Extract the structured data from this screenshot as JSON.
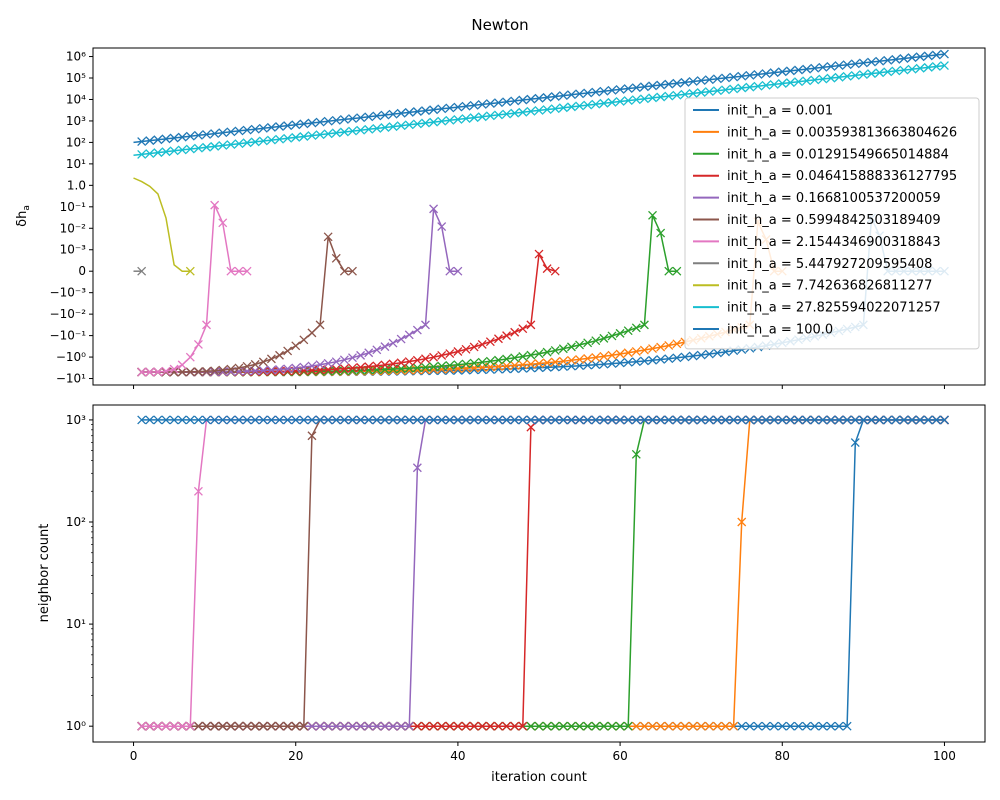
{
  "figure_title": "Newton",
  "colors": {
    "tab": [
      "#1f77b4",
      "#ff7f0e",
      "#2ca02c",
      "#d62728",
      "#9467bd",
      "#8c564b",
      "#e377c2",
      "#7f7f7f",
      "#bcbd22",
      "#17becf"
    ]
  },
  "chart_data": [
    {
      "type": "line",
      "panel": "top",
      "title": "Newton",
      "xlabel": "",
      "ylabel": "δh_a",
      "ylabel_main": "δh",
      "ylabel_sub": "a",
      "yscale": "symlog",
      "xlim": [
        -5,
        105
      ],
      "xticks": [
        0,
        20,
        40,
        60,
        80,
        100
      ],
      "ytick_labels": [
        "−10¹",
        "−10⁰",
        "−10⁻¹",
        "−10⁻²",
        "−10⁻³",
        "0",
        "10⁻³",
        "10⁻²",
        "10⁻¹",
        "1.0",
        "10¹",
        "10²",
        "10³",
        "10⁴",
        "10⁵",
        "10⁶"
      ],
      "legend": {
        "position": "right",
        "entries": [
          "init_h_a = 0.001",
          "init_h_a = 0.003593813663804626",
          "init_h_a = 0.01291549665014884",
          "init_h_a = 0.046415888336127795",
          "init_h_a = 0.1668100537200059",
          "init_h_a = 0.5994842503189409",
          "init_h_a = 2.1544346900318843",
          "init_h_a = 5.447927209595408",
          "init_h_a = 7.742636826811277",
          "init_h_a = 27.825594022071257",
          "init_h_a = 100.0"
        ]
      },
      "series": [
        {
          "name": "init_h_a = 0.001",
          "pattern": "spike",
          "start": 1,
          "spike_x": 91,
          "spike_y": 0.03,
          "end_x": 100,
          "marker": "x"
        },
        {
          "name": "init_h_a = 0.003593813663804626",
          "pattern": "spike",
          "start": 1,
          "spike_x": 77,
          "spike_y": 0.02,
          "end_x": 80,
          "marker": "x"
        },
        {
          "name": "init_h_a = 0.01291549665014884",
          "pattern": "spike",
          "start": 1,
          "spike_x": 64,
          "spike_y": 0.04,
          "end_x": 67,
          "marker": "x"
        },
        {
          "name": "init_h_a = 0.046415888336127795",
          "pattern": "spike",
          "start": 1,
          "spike_x": 50,
          "spike_y": 0.0008,
          "end_x": 52,
          "marker": "x"
        },
        {
          "name": "init_h_a = 0.1668100537200059",
          "pattern": "spike",
          "start": 1,
          "spike_x": 37,
          "spike_y": 0.08,
          "end_x": 40,
          "marker": "x"
        },
        {
          "name": "init_h_a = 0.5994842503189409",
          "pattern": "spike",
          "start": 1,
          "spike_x": 24,
          "spike_y": 0.004,
          "end_x": 27,
          "marker": "x"
        },
        {
          "name": "init_h_a = 2.1544346900318843",
          "pattern": "spike",
          "start": 1,
          "spike_x": 10,
          "spike_y": 0.12,
          "end_x": 14,
          "marker": "x"
        },
        {
          "name": "init_h_a = 5.447927209595408",
          "x": [
            0,
            1
          ],
          "y": [
            0,
            0
          ],
          "marker": "x"
        },
        {
          "name": "init_h_a = 7.742636826811277",
          "x": [
            0,
            1,
            2,
            3,
            4,
            5,
            6,
            7
          ],
          "y": [
            2.2,
            1.5,
            0.9,
            0.4,
            0.03,
            0.0003,
            0,
            0
          ],
          "marker_x": [
            7
          ]
        },
        {
          "name": "init_h_a = 27.825594022071257",
          "pattern": "exp",
          "x0": 0,
          "x1": 100,
          "y0": 25,
          "y1": 380000,
          "marker": "x"
        },
        {
          "name": "init_h_a = 100.0",
          "pattern": "exp",
          "x0": 0,
          "x1": 100,
          "y0": 100,
          "y1": 1300000,
          "marker": "x"
        }
      ]
    },
    {
      "type": "line",
      "panel": "bottom",
      "xlabel": "iteration count",
      "ylabel": "neighbor count",
      "yscale": "log",
      "xlim": [
        -5,
        105
      ],
      "ylim": [
        0.7,
        1400
      ],
      "xticks": [
        0,
        20,
        40,
        60,
        80,
        100
      ],
      "ytick_labels": [
        "10⁰",
        "10¹",
        "10²",
        "10³"
      ],
      "series": [
        {
          "name": "init_h_a = 0.001",
          "jump_x": 88,
          "mid_y": 600,
          "end_x": 100,
          "marker": "x"
        },
        {
          "name": "init_h_a = 0.003593813663804626",
          "jump_x": 74,
          "mid_y": 100,
          "end_x": 100,
          "marker": "x"
        },
        {
          "name": "init_h_a = 0.01291549665014884",
          "jump_x": 61,
          "mid_y": 460,
          "end_x": 100,
          "marker": "x"
        },
        {
          "name": "init_h_a = 0.046415888336127795",
          "jump_x": 48,
          "mid_y": 850,
          "end_x": 100,
          "marker": "x"
        },
        {
          "name": "init_h_a = 0.1668100537200059",
          "jump_x": 34,
          "mid_y": 340,
          "end_x": 100,
          "marker": "x"
        },
        {
          "name": "init_h_a = 0.5994842503189409",
          "jump_x": 21,
          "mid_y": 700,
          "end_x": 100,
          "marker": "x"
        },
        {
          "name": "init_h_a = 2.1544346900318843",
          "jump_x": 7,
          "mid_y": 200,
          "end_x": 100,
          "marker": "x"
        },
        {
          "name": "init_h_a = 100.0",
          "flat_y": 1000,
          "start": 1,
          "end_x": 100,
          "marker": "x"
        }
      ]
    }
  ]
}
